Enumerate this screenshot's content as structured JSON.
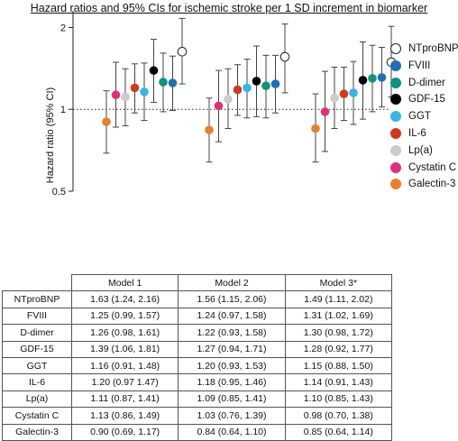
{
  "title": "Hazard ratios and 95% CIs for ischemic stroke per 1 SD increment in biomarker",
  "chart_data": {
    "type": "scatter",
    "subtype": "forest-plot",
    "title": "Hazard ratios and 95% CIs for ischemic stroke per 1 SD increment in biomarker",
    "ylabel": "Hazard ratio (95% CI)",
    "yscale": "log",
    "ylim": [
      0.5,
      2.2
    ],
    "yticks": [
      "0.5",
      "1",
      "2"
    ],
    "reference_line": 1,
    "categories": [
      "Model 1",
      "Model 2",
      "Model 3*"
    ],
    "legend_position": "right",
    "series": [
      {
        "name": "NTproBNP",
        "color": "#ffffff",
        "stroke": "#222222",
        "hr": [
          1.63,
          1.56,
          1.49
        ],
        "lo": [
          1.24,
          1.15,
          1.11
        ],
        "hi": [
          2.16,
          2.06,
          2.02
        ],
        "text": [
          "1.63 (1.24, 2.16)",
          "1.56 (1.15, 2.06)",
          "1.49 (1.11, 2.02)"
        ]
      },
      {
        "name": "FVIII",
        "color": "#1f6fb5",
        "hr": [
          1.25,
          1.24,
          1.31
        ],
        "lo": [
          0.99,
          0.97,
          1.02
        ],
        "hi": [
          1.57,
          1.58,
          1.69
        ],
        "text": [
          "1.25 (0.99, 1.57)",
          "1.24 (0.97, 1.58)",
          "1.31 (1.02, 1.69)"
        ]
      },
      {
        "name": "D-dimer",
        "color": "#14917a",
        "hr": [
          1.26,
          1.22,
          1.3
        ],
        "lo": [
          0.98,
          0.93,
          0.98
        ],
        "hi": [
          1.61,
          1.58,
          1.72
        ],
        "text": [
          "1.26 (0.98, 1.61)",
          "1.22 (0.93, 1.58)",
          "1.30 (0.98, 1.72)"
        ]
      },
      {
        "name": "GDF-15",
        "color": "#000000",
        "hr": [
          1.39,
          1.27,
          1.28
        ],
        "lo": [
          1.06,
          0.94,
          0.92
        ],
        "hi": [
          1.81,
          1.71,
          1.77
        ],
        "text": [
          "1.39 (1.06, 1.81)",
          "1.27 (0.94, 1.71)",
          "1.28 (0.92, 1.77)"
        ]
      },
      {
        "name": "GGT",
        "color": "#35b6e6",
        "hr": [
          1.16,
          1.2,
          1.15
        ],
        "lo": [
          0.91,
          0.93,
          0.88
        ],
        "hi": [
          1.48,
          1.53,
          1.5
        ],
        "text": [
          "1.16 (0.91, 1.48)",
          "1.20 (0.93, 1.53)",
          "1.15 (0.88, 1.50)"
        ]
      },
      {
        "name": "IL-6",
        "color": "#d03a1e",
        "hr": [
          1.2,
          1.18,
          1.14
        ],
        "lo": [
          0.97,
          0.95,
          0.91
        ],
        "hi": [
          1.47,
          1.46,
          1.43
        ],
        "text": [
          "1.20 (0.97 1.47)",
          "1.18 (0.95, 1.46)",
          "1.14 (0.91, 1.43)"
        ]
      },
      {
        "name": "Lp(a)",
        "color": "#cccccc",
        "hr": [
          1.11,
          1.09,
          1.1
        ],
        "lo": [
          0.87,
          0.85,
          0.85
        ],
        "hi": [
          1.41,
          1.41,
          1.43
        ],
        "text": [
          "1.11 (0.87, 1.41)",
          "1.09 (0.85, 1.41)",
          "1.10 (0.85, 1.43)"
        ]
      },
      {
        "name": "Cystatin C",
        "color": "#e0307a",
        "hr": [
          1.13,
          1.03,
          0.98
        ],
        "lo": [
          0.86,
          0.76,
          0.7
        ],
        "hi": [
          1.49,
          1.39,
          1.38
        ],
        "text": [
          "1.13 (0.86, 1.49)",
          "1.03 (0.76, 1.39)",
          "0.98 (0.70, 1.38)"
        ]
      },
      {
        "name": "Galectin-3",
        "color": "#ea7f2f",
        "hr": [
          0.9,
          0.84,
          0.85
        ],
        "lo": [
          0.69,
          0.64,
          0.64
        ],
        "hi": [
          1.17,
          1.1,
          1.14
        ],
        "text": [
          "0.90 (0.69, 1.17)",
          "0.84 (0.64, 1.10)",
          "0.85 (0.64, 1.14)"
        ]
      }
    ]
  },
  "legend": [
    "NTproBNP",
    "FVIII",
    "D-dimer",
    "GDF-15",
    "GGT",
    "IL-6",
    "Lp(a)",
    "Cystatin C",
    "Galectin-3"
  ]
}
